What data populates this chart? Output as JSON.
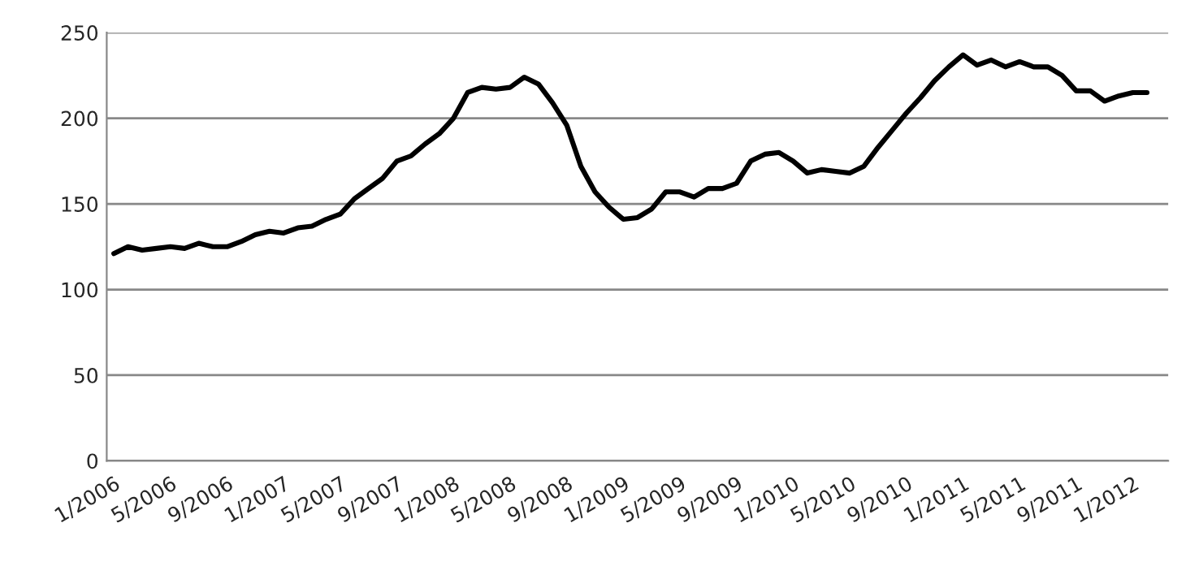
{
  "chart_data": {
    "type": "line",
    "categories": [
      "1/2006",
      null,
      null,
      null,
      "5/2006",
      null,
      null,
      null,
      "9/2006",
      null,
      null,
      null,
      "1/2007",
      null,
      null,
      null,
      "5/2007",
      null,
      null,
      null,
      "9/2007",
      null,
      null,
      null,
      "1/2008",
      null,
      null,
      null,
      "5/2008",
      null,
      null,
      null,
      "9/2008",
      null,
      null,
      null,
      "1/2009",
      null,
      null,
      null,
      "5/2009",
      null,
      null,
      null,
      "9/2009",
      null,
      null,
      null,
      "1/2010",
      null,
      null,
      null,
      "5/2010",
      null,
      null,
      null,
      "9/2010",
      null,
      null,
      null,
      "1/2011",
      null,
      null,
      null,
      "5/2011",
      null,
      null,
      null,
      "9/2011",
      null,
      null,
      null,
      "1/2012",
      null,
      null
    ],
    "series": [
      {
        "color": "#000000",
        "values": [
          121,
          125,
          123,
          124,
          125,
          124,
          127,
          125,
          125,
          128,
          132,
          134,
          133,
          136,
          137,
          141,
          144,
          153,
          159,
          165,
          175,
          178,
          185,
          191,
          200,
          215,
          218,
          217,
          218,
          224,
          220,
          209,
          196,
          172,
          157,
          148,
          141,
          142,
          147,
          157,
          157,
          154,
          159,
          159,
          162,
          175,
          179,
          180,
          175,
          168,
          170,
          169,
          168,
          172,
          183,
          193,
          203,
          212,
          222,
          230,
          237,
          231,
          234,
          230,
          233,
          230,
          230,
          225,
          216,
          216,
          210,
          213,
          215,
          215,
          null
        ]
      }
    ],
    "ylim": [
      0,
      250
    ],
    "yticks": [
      0,
      50,
      100,
      150,
      200,
      250
    ],
    "grid": "y",
    "line_style": "solid",
    "marker": "none"
  }
}
